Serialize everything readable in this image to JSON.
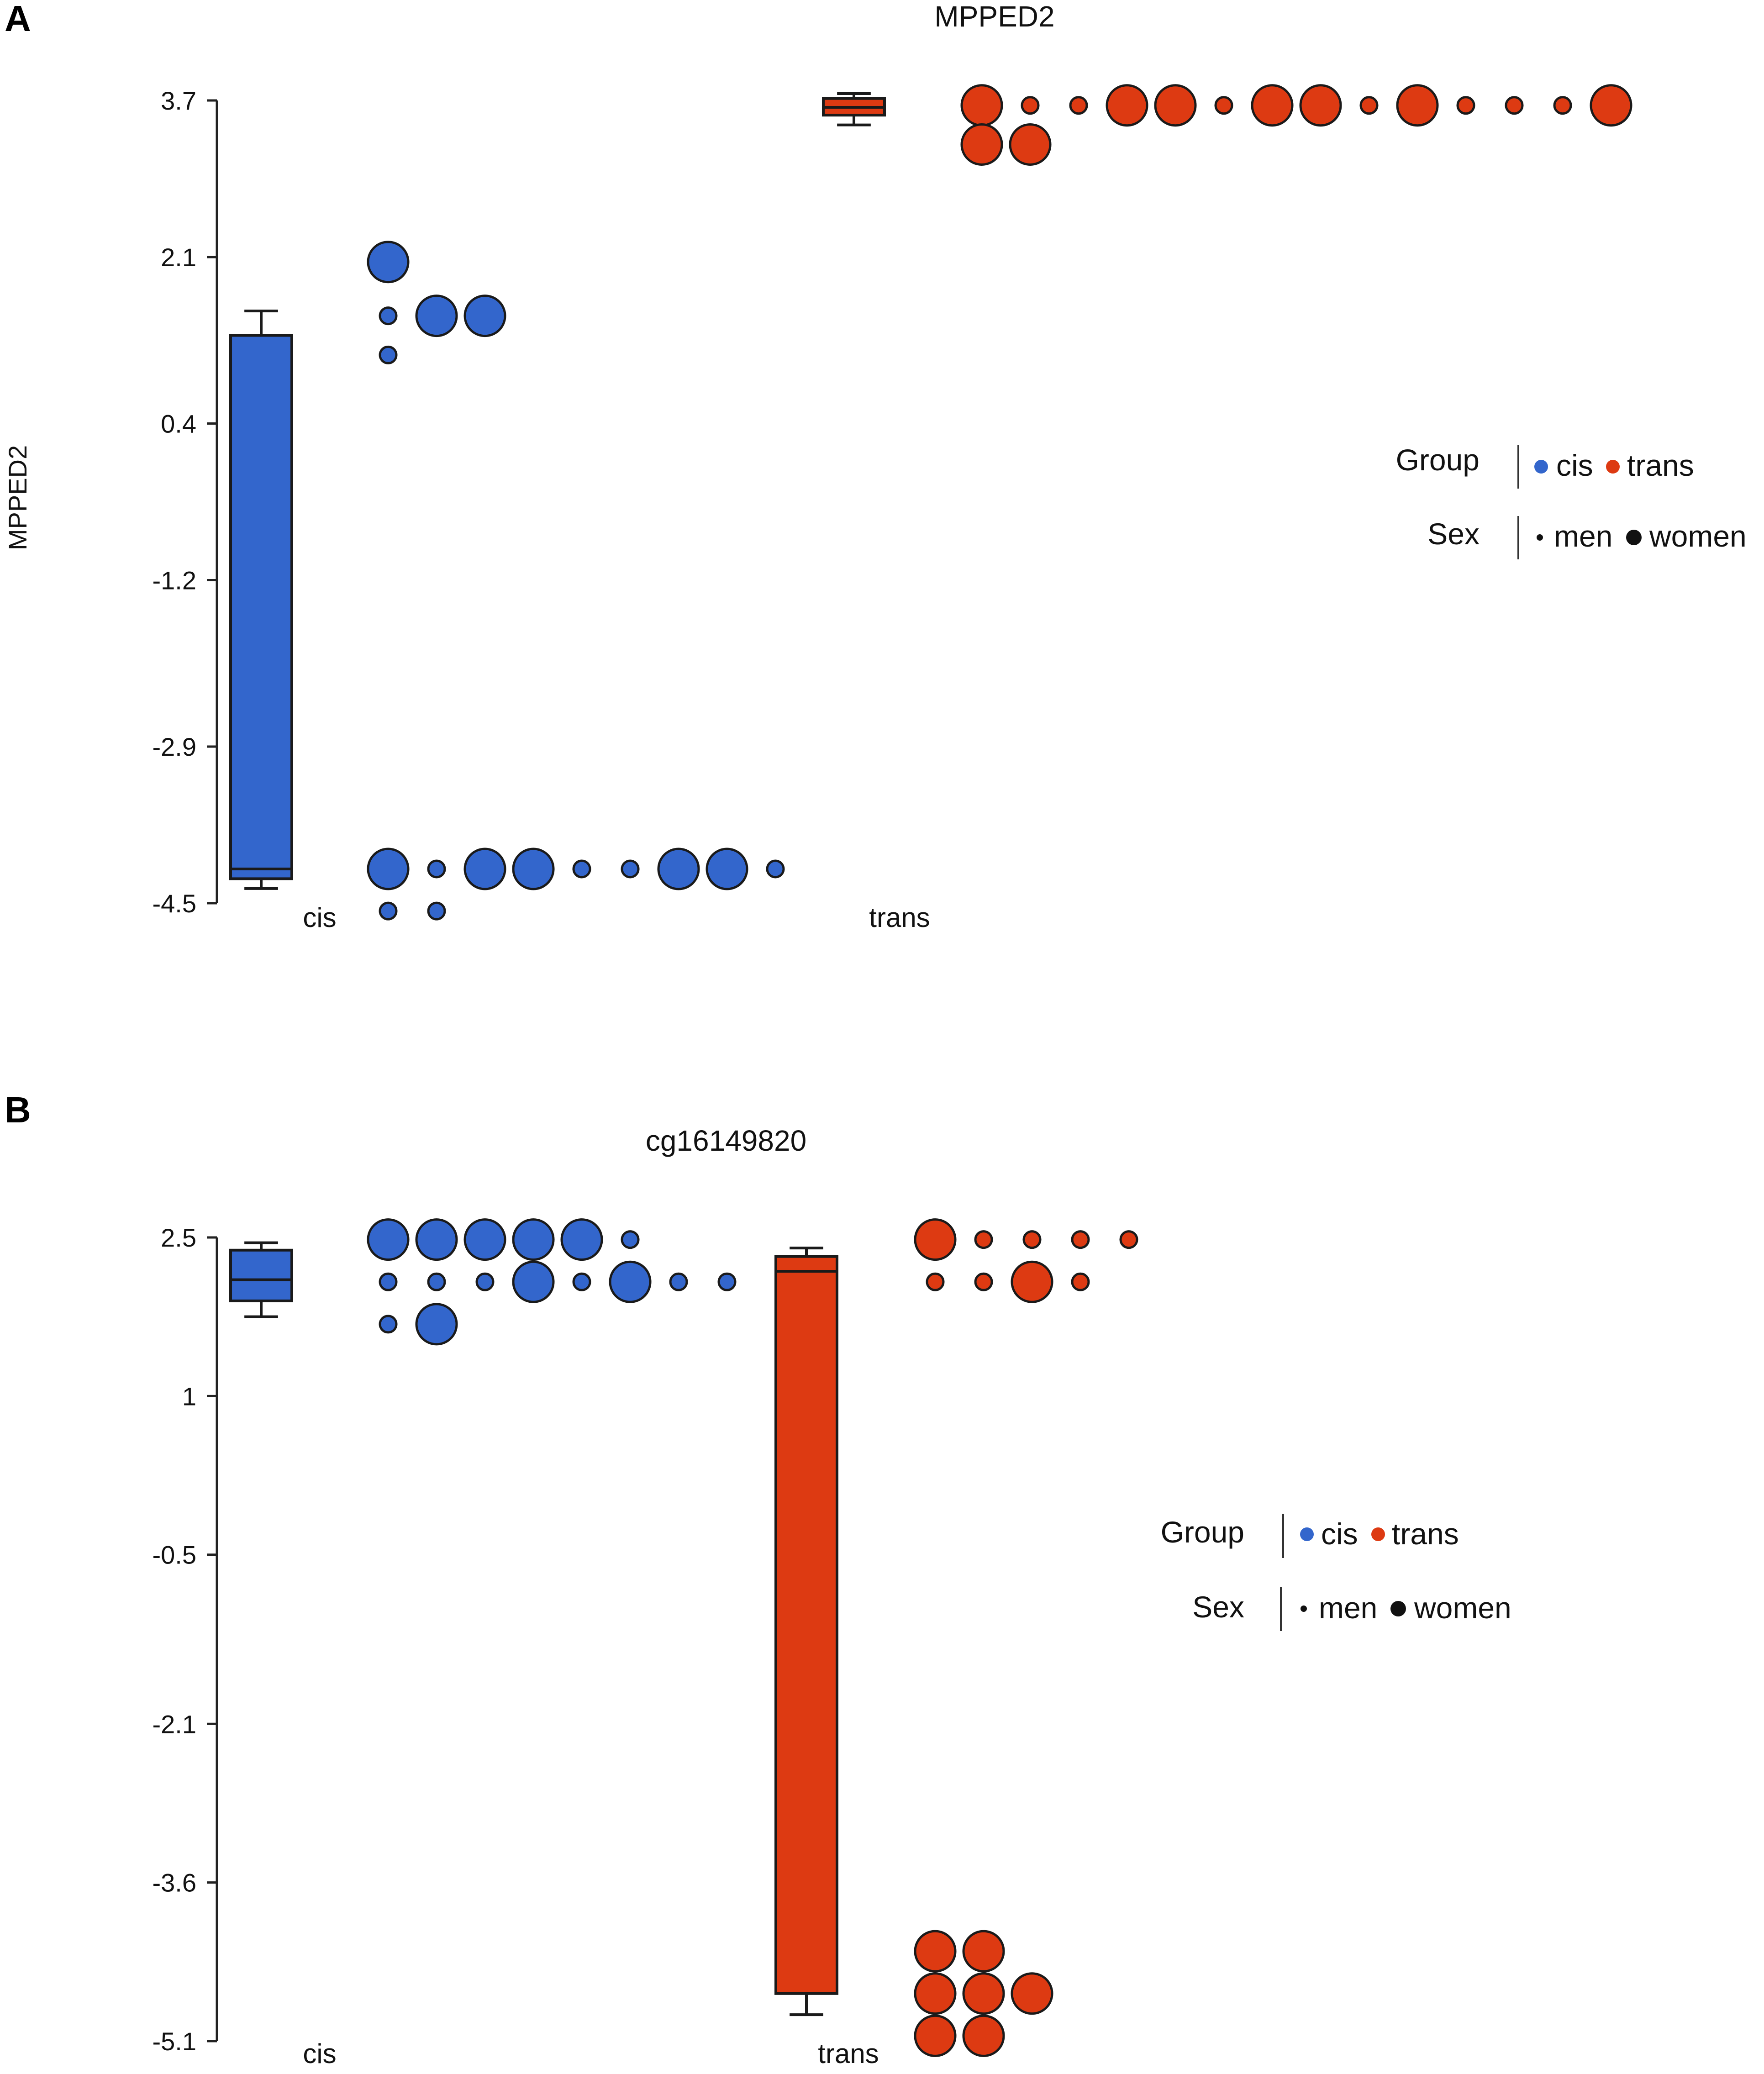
{
  "colors": {
    "cis": "#3366cc",
    "trans": "#dd3a12",
    "outline": "#1a1a1a"
  },
  "chart_data": [
    {
      "panel": "A",
      "type": "box+dot",
      "title": "MPPED2",
      "ylabel": "MPPED2",
      "xlabel": "",
      "categories": [
        "cis",
        "trans"
      ],
      "ylim": [
        -4.5,
        3.7
      ],
      "yticks": [
        "3.7",
        "2.1",
        "0.4",
        "-1.2",
        "-2.9",
        "-4.5"
      ],
      "ytick_values": [
        3.7,
        2.1,
        0.4,
        -1.2,
        -2.9,
        -4.5
      ],
      "boxes": [
        {
          "group": "cis",
          "whisker_low": -4.35,
          "q1": -4.25,
          "median": -4.15,
          "q3": 1.3,
          "whisker_high": 1.55
        },
        {
          "group": "trans",
          "whisker_low": 3.45,
          "q1": 3.55,
          "median": 3.63,
          "q3": 3.72,
          "whisker_high": 3.77
        }
      ],
      "points": [
        {
          "group": "cis",
          "y": 2.05,
          "sex": "women"
        },
        {
          "group": "cis",
          "y": 1.5,
          "sex": "men"
        },
        {
          "group": "cis",
          "y": 1.5,
          "sex": "women"
        },
        {
          "group": "cis",
          "y": 1.5,
          "sex": "women"
        },
        {
          "group": "cis",
          "y": 1.1,
          "sex": "men"
        },
        {
          "group": "cis",
          "y": -4.15,
          "sex": "women"
        },
        {
          "group": "cis",
          "y": -4.15,
          "sex": "men"
        },
        {
          "group": "cis",
          "y": -4.15,
          "sex": "women"
        },
        {
          "group": "cis",
          "y": -4.15,
          "sex": "women"
        },
        {
          "group": "cis",
          "y": -4.15,
          "sex": "men"
        },
        {
          "group": "cis",
          "y": -4.15,
          "sex": "men"
        },
        {
          "group": "cis",
          "y": -4.15,
          "sex": "women"
        },
        {
          "group": "cis",
          "y": -4.15,
          "sex": "women"
        },
        {
          "group": "cis",
          "y": -4.15,
          "sex": "men"
        },
        {
          "group": "cis",
          "y": -4.58,
          "sex": "men"
        },
        {
          "group": "cis",
          "y": -4.58,
          "sex": "men"
        },
        {
          "group": "trans",
          "y": 3.65,
          "sex": "women"
        },
        {
          "group": "trans",
          "y": 3.65,
          "sex": "men"
        },
        {
          "group": "trans",
          "y": 3.65,
          "sex": "men"
        },
        {
          "group": "trans",
          "y": 3.65,
          "sex": "women"
        },
        {
          "group": "trans",
          "y": 3.65,
          "sex": "women"
        },
        {
          "group": "trans",
          "y": 3.65,
          "sex": "men"
        },
        {
          "group": "trans",
          "y": 3.65,
          "sex": "women"
        },
        {
          "group": "trans",
          "y": 3.65,
          "sex": "women"
        },
        {
          "group": "trans",
          "y": 3.65,
          "sex": "men"
        },
        {
          "group": "trans",
          "y": 3.65,
          "sex": "women"
        },
        {
          "group": "trans",
          "y": 3.65,
          "sex": "men"
        },
        {
          "group": "trans",
          "y": 3.65,
          "sex": "men"
        },
        {
          "group": "trans",
          "y": 3.65,
          "sex": "men"
        },
        {
          "group": "trans",
          "y": 3.65,
          "sex": "women"
        },
        {
          "group": "trans",
          "y": 3.25,
          "sex": "women"
        },
        {
          "group": "trans",
          "y": 3.25,
          "sex": "women"
        }
      ],
      "legend": {
        "group_title": "Group",
        "sex_title": "Sex",
        "groups": [
          "cis",
          "trans"
        ],
        "sexes": [
          "men",
          "women"
        ],
        "position": "right"
      }
    },
    {
      "panel": "B",
      "type": "box+dot",
      "title": "cg16149820",
      "ylabel": "",
      "xlabel": "",
      "categories": [
        "cis",
        "trans"
      ],
      "ylim": [
        -5.1,
        2.5
      ],
      "yticks": [
        "2.5",
        "1",
        "-0.5",
        "-2.1",
        "-3.6",
        "-5.1"
      ],
      "ytick_values": [
        2.5,
        1.0,
        -0.5,
        -2.1,
        -3.6,
        -5.1
      ],
      "boxes": [
        {
          "group": "cis",
          "whisker_low": 1.75,
          "q1": 1.9,
          "median": 2.1,
          "q3": 2.38,
          "whisker_high": 2.45
        },
        {
          "group": "trans",
          "whisker_low": -4.85,
          "q1": -4.65,
          "median": 2.18,
          "q3": 2.32,
          "whisker_high": 2.4
        }
      ],
      "points": [
        {
          "group": "cis",
          "y": 2.48,
          "sex": "women"
        },
        {
          "group": "cis",
          "y": 2.48,
          "sex": "women"
        },
        {
          "group": "cis",
          "y": 2.48,
          "sex": "women"
        },
        {
          "group": "cis",
          "y": 2.48,
          "sex": "women"
        },
        {
          "group": "cis",
          "y": 2.48,
          "sex": "women"
        },
        {
          "group": "cis",
          "y": 2.48,
          "sex": "men"
        },
        {
          "group": "cis",
          "y": 2.08,
          "sex": "men"
        },
        {
          "group": "cis",
          "y": 2.08,
          "sex": "men"
        },
        {
          "group": "cis",
          "y": 2.08,
          "sex": "men"
        },
        {
          "group": "cis",
          "y": 2.08,
          "sex": "women"
        },
        {
          "group": "cis",
          "y": 2.08,
          "sex": "men"
        },
        {
          "group": "cis",
          "y": 2.08,
          "sex": "women"
        },
        {
          "group": "cis",
          "y": 2.08,
          "sex": "men"
        },
        {
          "group": "cis",
          "y": 2.08,
          "sex": "men"
        },
        {
          "group": "cis",
          "y": 1.68,
          "sex": "men"
        },
        {
          "group": "cis",
          "y": 1.68,
          "sex": "women"
        },
        {
          "group": "trans",
          "y": 2.48,
          "sex": "women"
        },
        {
          "group": "trans",
          "y": 2.48,
          "sex": "men"
        },
        {
          "group": "trans",
          "y": 2.48,
          "sex": "men"
        },
        {
          "group": "trans",
          "y": 2.48,
          "sex": "men"
        },
        {
          "group": "trans",
          "y": 2.48,
          "sex": "men"
        },
        {
          "group": "trans",
          "y": 2.08,
          "sex": "men"
        },
        {
          "group": "trans",
          "y": 2.08,
          "sex": "men"
        },
        {
          "group": "trans",
          "y": 2.08,
          "sex": "women"
        },
        {
          "group": "trans",
          "y": 2.08,
          "sex": "men"
        },
        {
          "group": "trans",
          "y": -4.25,
          "sex": "women"
        },
        {
          "group": "trans",
          "y": -4.25,
          "sex": "women"
        },
        {
          "group": "trans",
          "y": -4.65,
          "sex": "women"
        },
        {
          "group": "trans",
          "y": -4.65,
          "sex": "women"
        },
        {
          "group": "trans",
          "y": -4.65,
          "sex": "women"
        },
        {
          "group": "trans",
          "y": -5.05,
          "sex": "women"
        },
        {
          "group": "trans",
          "y": -5.05,
          "sex": "women"
        }
      ],
      "legend": {
        "group_title": "Group",
        "sex_title": "Sex",
        "groups": [
          "cis",
          "trans"
        ],
        "sexes": [
          "men",
          "women"
        ],
        "position": "right"
      }
    }
  ]
}
